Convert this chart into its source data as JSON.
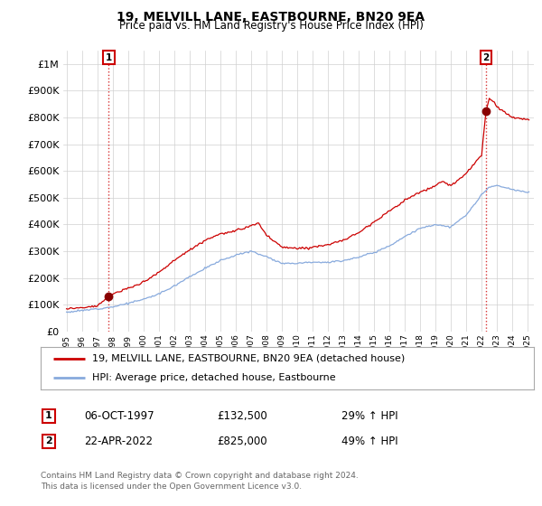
{
  "title": "19, MELVILL LANE, EASTBOURNE, BN20 9EA",
  "subtitle": "Price paid vs. HM Land Registry's House Price Index (HPI)",
  "background_color": "#ffffff",
  "grid_color": "#d0d0d0",
  "sale1_date": "06-OCT-1997",
  "sale1_price": 132500,
  "sale1_label": "29% ↑ HPI",
  "sale2_date": "22-APR-2022",
  "sale2_price": 825000,
  "sale2_label": "49% ↑ HPI",
  "legend_line1": "19, MELVILL LANE, EASTBOURNE, BN20 9EA (detached house)",
  "legend_line2": "HPI: Average price, detached house, Eastbourne",
  "footer": "Contains HM Land Registry data © Crown copyright and database right 2024.\nThis data is licensed under the Open Government Licence v3.0.",
  "red_color": "#cc0000",
  "blue_color": "#88aadd",
  "marker_color": "#880000",
  "annotation_box_color": "#cc0000",
  "ylim_max": 1050000,
  "sale1_x": 1997.75,
  "sale2_x": 2022.29
}
